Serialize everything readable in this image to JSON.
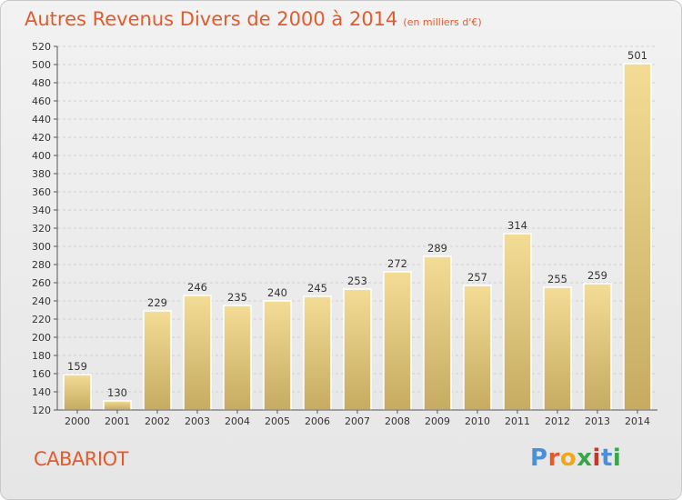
{
  "header": {
    "title": "Autres Revenus Divers de 2000 à 2014",
    "unit": "(en milliers d'€)"
  },
  "footer": {
    "commune": "CABARIOT",
    "logo": "Proxiti",
    "logo_colors": [
      "#4a90d9",
      "#e35b2b",
      "#f0a818",
      "#3aa648",
      "#c0392b",
      "#4a90d9",
      "#3aa648"
    ]
  },
  "colors": {
    "accent": "#e35b2b",
    "bar_top": "#f3dc95",
    "bar_bottom": "#c6ab61",
    "grid": "#cfcfcf"
  },
  "chart_data": {
    "type": "bar",
    "title": "Autres Revenus Divers de 2000 à 2014",
    "xlabel": "",
    "ylabel": "",
    "categories": [
      "2000",
      "2001",
      "2002",
      "2003",
      "2004",
      "2005",
      "2006",
      "2007",
      "2008",
      "2009",
      "2010",
      "2011",
      "2012",
      "2013",
      "2014"
    ],
    "values": [
      159,
      130,
      229,
      246,
      235,
      240,
      245,
      253,
      272,
      289,
      257,
      314,
      255,
      259,
      501
    ],
    "ylim": [
      120,
      520
    ],
    "ytick_step": 20,
    "grid": true
  }
}
